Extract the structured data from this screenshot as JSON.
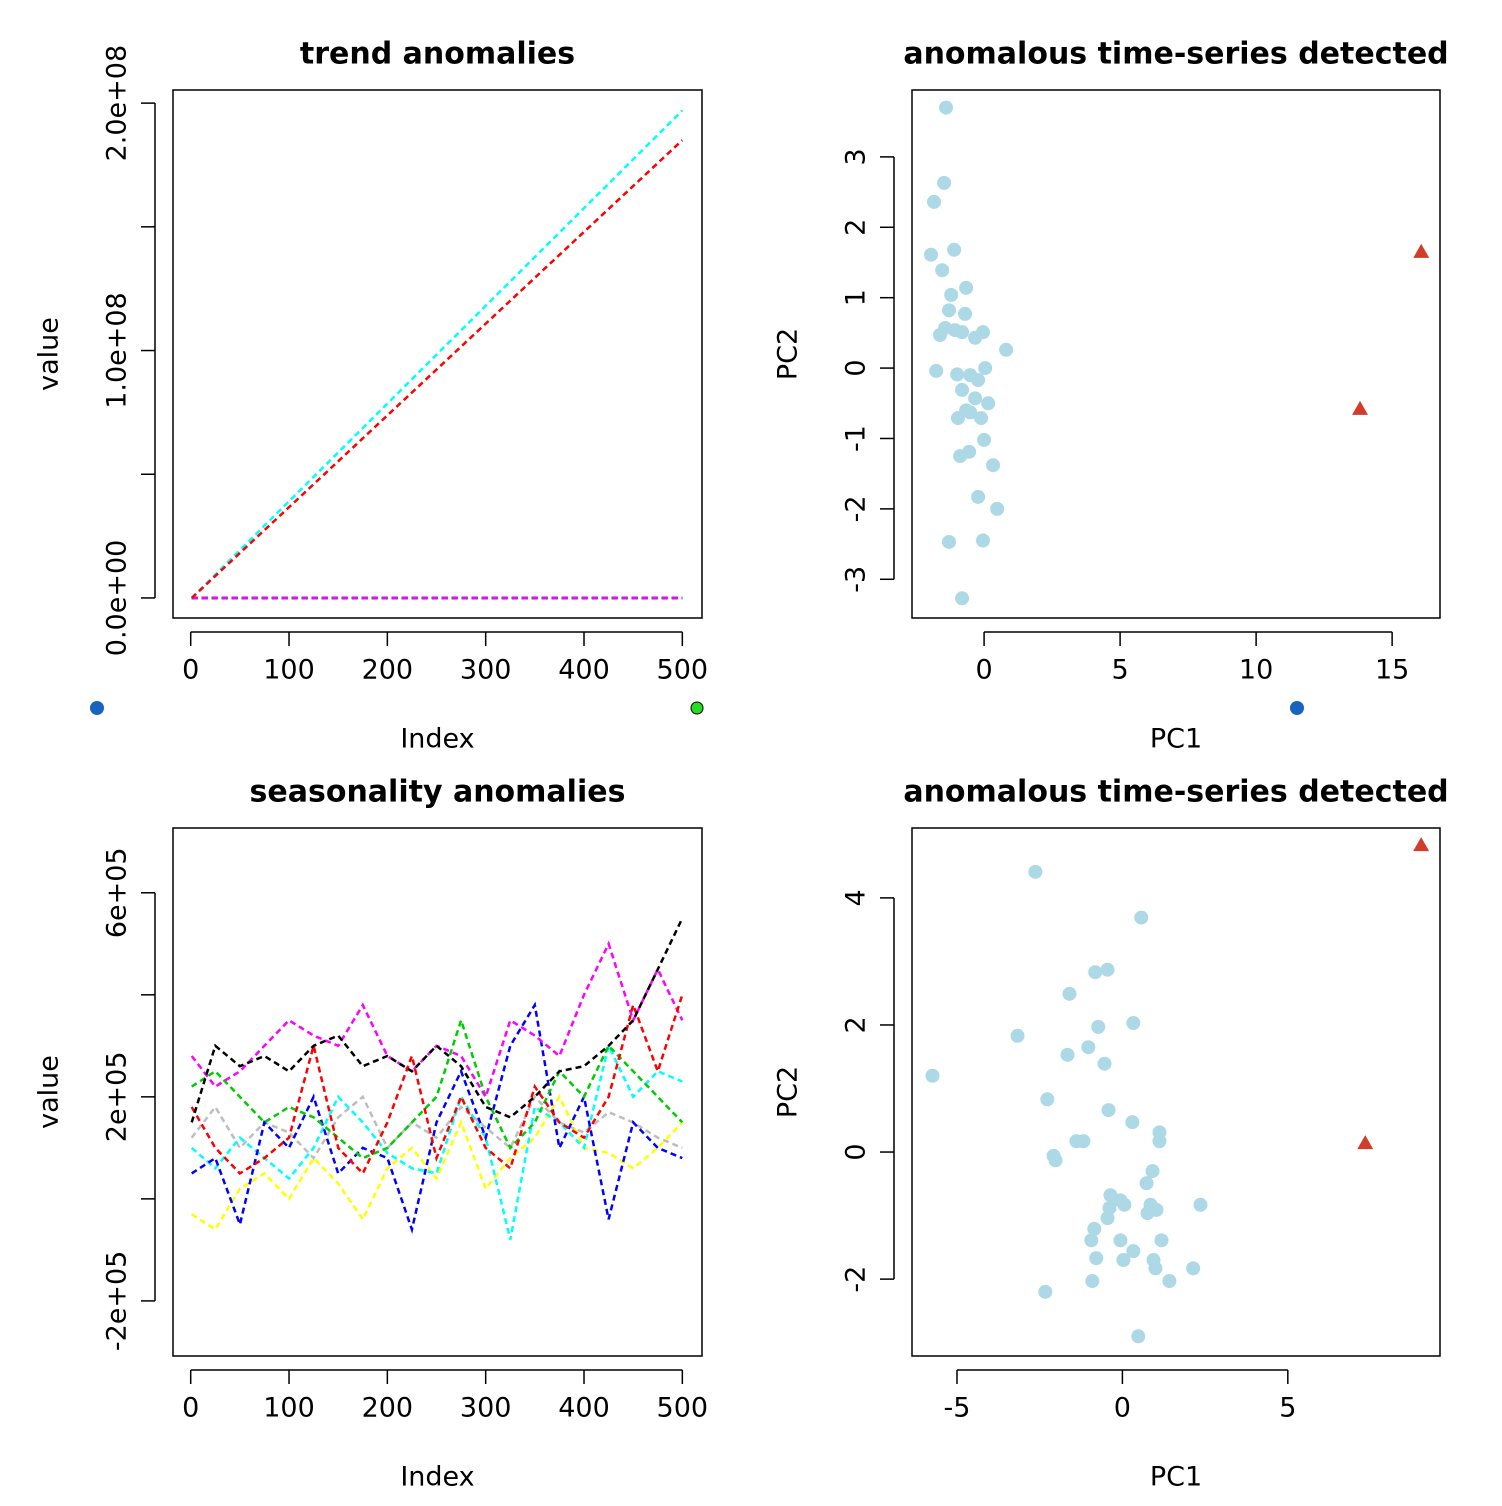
{
  "chart_data": [
    {
      "type": "line",
      "title": "trend anomalies",
      "xlabel": "Index",
      "ylabel": "value",
      "linestyle": "dashed",
      "x": [
        1,
        500
      ],
      "series": [
        {
          "color": "#000000",
          "values": [
            0,
            0
          ]
        },
        {
          "color": "#00cd00",
          "values": [
            0,
            0
          ]
        },
        {
          "color": "#0000ff",
          "values": [
            0,
            0
          ]
        },
        {
          "color": "#ff00ff",
          "values": [
            0,
            0
          ]
        },
        {
          "color": "#00ffff",
          "values": [
            0,
            197000000
          ]
        },
        {
          "color": "#ff0000",
          "values": [
            0,
            185000000
          ]
        }
      ],
      "xlim": [
        -18,
        520
      ],
      "xticks": [
        0,
        100,
        200,
        300,
        400,
        500
      ],
      "ylim": [
        -8100000,
        205300000
      ],
      "yticks": [
        {
          "value": 0,
          "label": "0.0e+00"
        },
        {
          "value": 100000000,
          "label": "1.0e+08"
        },
        {
          "value": 200000000,
          "label": "2.0e+08"
        }
      ],
      "yticks_minor": [
        50000000,
        150000000
      ]
    },
    {
      "type": "scatter",
      "title": "anomalous time-series detected",
      "xlabel": "PC1",
      "ylabel": "PC2",
      "series": [
        {
          "color": "#add8e6",
          "marker": "circle",
          "x": [
            -1.4,
            -1.47,
            -1.84,
            -1.95,
            -1.1,
            -1.54,
            -0.66,
            -1.21,
            -1.29,
            -0.7,
            -1.43,
            -1.07,
            -1.62,
            -0.81,
            -0.04,
            -0.33,
            0.81,
            -1.76,
            -0.99,
            -0.51,
            0.04,
            -0.22,
            -0.81,
            -0.33,
            0.15,
            -0.66,
            -0.96,
            -0.11,
            -0.51,
            0.0,
            -0.55,
            -0.88,
            0.33,
            -0.22,
            0.48,
            -0.04,
            -1.29,
            -0.81
          ],
          "values": [
            3.7,
            2.63,
            2.36,
            1.61,
            1.68,
            1.39,
            1.14,
            1.04,
            0.82,
            0.77,
            0.57,
            0.54,
            0.47,
            0.51,
            0.51,
            0.43,
            0.26,
            -0.04,
            -0.09,
            -0.1,
            0,
            -0.17,
            -0.31,
            -0.43,
            -0.5,
            -0.6,
            -0.71,
            -0.71,
            -0.63,
            -1.02,
            -1.19,
            -1.25,
            -1.38,
            -1.83,
            -2.0,
            -2.45,
            -2.47,
            -3.27
          ]
        },
        {
          "color": "#d23c2b",
          "marker": "triangle",
          "x": [
            16.07,
            13.82
          ],
          "values": [
            1.65,
            -0.58
          ]
        }
      ],
      "xlim": [
        -2.65,
        16.76
      ],
      "xticks": [
        0,
        5,
        10,
        15
      ],
      "ylim": [
        -3.55,
        3.95
      ],
      "yticks": [
        -3,
        -2,
        -1,
        0,
        1,
        2,
        3
      ]
    },
    {
      "type": "line",
      "title": "seasonality anomalies",
      "xlabel": "Index",
      "ylabel": "value",
      "linestyle": "dashed",
      "x": [
        1,
        25,
        50,
        75,
        100,
        125,
        150,
        175,
        200,
        225,
        250,
        275,
        300,
        325,
        350,
        375,
        400,
        425,
        450,
        475,
        500
      ],
      "series": [
        {
          "color": "#ffff00",
          "values": [
            -30000,
            -60000,
            20000,
            50000,
            0,
            80000,
            30000,
            -40000,
            60000,
            100000,
            40000,
            150000,
            20000,
            80000,
            120000,
            200000,
            100000,
            90000,
            60000,
            100000,
            150000
          ]
        },
        {
          "color": "#bebebe",
          "values": [
            120000,
            180000,
            100000,
            150000,
            130000,
            80000,
            160000,
            200000,
            100000,
            150000,
            120000,
            180000,
            140000,
            100000,
            200000,
            150000,
            130000,
            170000,
            150000,
            120000,
            100000
          ]
        },
        {
          "color": "#00ffff",
          "values": [
            100000,
            60000,
            120000,
            80000,
            40000,
            100000,
            200000,
            150000,
            90000,
            60000,
            50000,
            200000,
            120000,
            -80000,
            180000,
            150000,
            100000,
            300000,
            200000,
            250000,
            230000
          ]
        },
        {
          "color": "#0000ff",
          "values": [
            50000,
            80000,
            -50000,
            150000,
            100000,
            200000,
            50000,
            100000,
            80000,
            -60000,
            150000,
            250000,
            120000,
            300000,
            380000,
            100000,
            200000,
            -40000,
            150000,
            100000,
            80000
          ]
        },
        {
          "color": "#00cd00",
          "values": [
            220000,
            250000,
            200000,
            150000,
            180000,
            160000,
            120000,
            80000,
            100000,
            150000,
            200000,
            350000,
            200000,
            100000,
            150000,
            250000,
            200000,
            300000,
            250000,
            200000,
            150000
          ]
        },
        {
          "color": "#ff00ff",
          "values": [
            280000,
            220000,
            250000,
            300000,
            350000,
            320000,
            300000,
            380000,
            280000,
            250000,
            300000,
            280000,
            200000,
            350000,
            320000,
            280000,
            400000,
            500000,
            350000,
            450000,
            350000
          ]
        },
        {
          "color": "#ff0000",
          "values": [
            180000,
            100000,
            50000,
            80000,
            120000,
            300000,
            100000,
            50000,
            150000,
            280000,
            80000,
            200000,
            100000,
            60000,
            220000,
            150000,
            120000,
            200000,
            380000,
            250000,
            400000
          ]
        },
        {
          "color": "#000000",
          "values": [
            150000,
            300000,
            260000,
            280000,
            250000,
            300000,
            320000,
            260000,
            280000,
            250000,
            300000,
            260000,
            180000,
            160000,
            200000,
            250000,
            260000,
            300000,
            350000,
            450000,
            550000
          ]
        }
      ],
      "xlim": [
        -18,
        520
      ],
      "xticks": [
        0,
        100,
        200,
        300,
        400,
        500
      ],
      "ylim": [
        -308000,
        727000
      ],
      "yticks": [
        {
          "value": -200000,
          "label": "-2e+05"
        },
        {
          "value": 200000,
          "label": "2e+05"
        },
        {
          "value": 600000,
          "label": "6e+05"
        }
      ],
      "yticks_minor": [
        0,
        400000
      ]
    },
    {
      "type": "scatter",
      "title": "anomalous time-series detected",
      "xlabel": "PC1",
      "ylabel": "PC2",
      "series": [
        {
          "color": "#add8e6",
          "marker": "circle",
          "x": [
            -2.63,
            0.57,
            -0.45,
            -0.82,
            -1.6,
            0.33,
            -0.73,
            -3.17,
            -1.03,
            -1.66,
            -0.54,
            -5.74,
            -2.27,
            -0.42,
            0.3,
            1.12,
            1.12,
            -1.39,
            -1.18,
            -2.08,
            -2.02,
            0.91,
            0.73,
            -0.36,
            -0.06,
            2.36,
            0.85,
            0.06,
            -0.39,
            1.03,
            0.76,
            -0.45,
            -0.85,
            -0.94,
            -0.06,
            1.18,
            -0.79,
            0.03,
            0.33,
            0.94,
            1.0,
            2.14,
            1.42,
            -0.91,
            -2.33,
            0.48
          ],
          "values": [
            4.41,
            3.69,
            2.87,
            2.83,
            2.49,
            2.03,
            1.97,
            1.83,
            1.65,
            1.53,
            1.39,
            1.2,
            0.83,
            0.66,
            0.47,
            0.31,
            0.17,
            0.17,
            0.17,
            -0.06,
            -0.13,
            -0.3,
            -0.49,
            -0.68,
            -0.76,
            -0.83,
            -0.83,
            -0.83,
            -0.88,
            -0.91,
            -0.96,
            -1.04,
            -1.21,
            -1.39,
            -1.39,
            -1.39,
            -1.67,
            -1.7,
            -1.56,
            -1.7,
            -1.83,
            -1.83,
            -2.03,
            -2.03,
            -2.2,
            -2.9
          ]
        },
        {
          "color": "#d23c2b",
          "marker": "triangle",
          "x": [
            9.03,
            7.34
          ],
          "values": [
            4.83,
            0.14
          ]
        }
      ],
      "xlim": [
        -6.36,
        9.6
      ],
      "xticks": [
        -5,
        0,
        5
      ],
      "ylim": [
        -3.21,
        5.1
      ],
      "yticks": [
        -2,
        0,
        2,
        4
      ]
    }
  ]
}
